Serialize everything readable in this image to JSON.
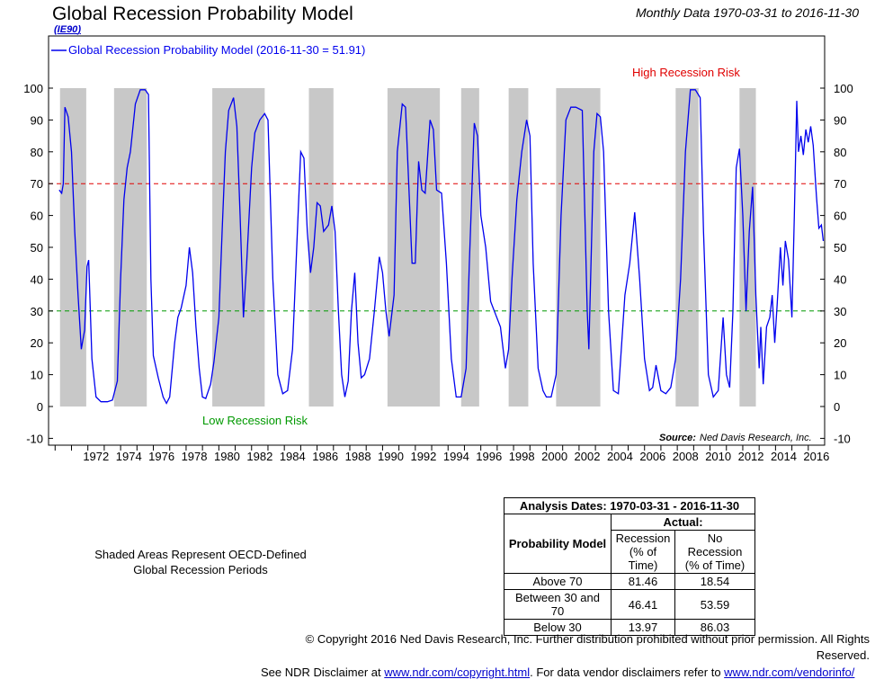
{
  "header": {
    "title": "Global Recession Probability Model",
    "code": "IE90",
    "date_range": "Monthly Data 1970-03-31 to 2016-11-30"
  },
  "chart_data": {
    "type": "line",
    "series": [
      {
        "name": "Global Recession Probability Model (2016-11-30 = 51.91)",
        "color": "#0000ee",
        "points": [
          [
            1970.25,
            68
          ],
          [
            1970.4,
            67
          ],
          [
            1970.5,
            70
          ],
          [
            1970.6,
            94
          ],
          [
            1970.8,
            91
          ],
          [
            1971.0,
            80
          ],
          [
            1971.2,
            55
          ],
          [
            1971.4,
            35
          ],
          [
            1971.6,
            18
          ],
          [
            1971.8,
            24
          ],
          [
            1971.95,
            44
          ],
          [
            1972.05,
            46
          ],
          [
            1972.25,
            15
          ],
          [
            1972.5,
            3
          ],
          [
            1972.8,
            1.5
          ],
          [
            1973.2,
            1.5
          ],
          [
            1973.5,
            2
          ],
          [
            1973.8,
            8
          ],
          [
            1974.0,
            40
          ],
          [
            1974.2,
            65
          ],
          [
            1974.4,
            75
          ],
          [
            1974.6,
            80
          ],
          [
            1974.9,
            95
          ],
          [
            1975.2,
            99.5
          ],
          [
            1975.5,
            99.5
          ],
          [
            1975.7,
            98
          ],
          [
            1975.85,
            40
          ],
          [
            1976.0,
            16
          ],
          [
            1976.3,
            9
          ],
          [
            1976.6,
            3
          ],
          [
            1976.8,
            1
          ],
          [
            1977.0,
            3
          ],
          [
            1977.3,
            20
          ],
          [
            1977.5,
            28
          ],
          [
            1977.7,
            31
          ],
          [
            1978.0,
            38
          ],
          [
            1978.2,
            50
          ],
          [
            1978.4,
            42
          ],
          [
            1978.6,
            25
          ],
          [
            1978.8,
            12
          ],
          [
            1979.0,
            3
          ],
          [
            1979.2,
            2.5
          ],
          [
            1979.5,
            7
          ],
          [
            1979.7,
            14
          ],
          [
            1980.0,
            28
          ],
          [
            1980.2,
            55
          ],
          [
            1980.4,
            80
          ],
          [
            1980.6,
            93
          ],
          [
            1980.9,
            97
          ],
          [
            1981.1,
            88
          ],
          [
            1981.3,
            60
          ],
          [
            1981.5,
            28
          ],
          [
            1981.7,
            45
          ],
          [
            1982.0,
            75
          ],
          [
            1982.2,
            86
          ],
          [
            1982.5,
            90
          ],
          [
            1982.8,
            92
          ],
          [
            1983.0,
            90
          ],
          [
            1983.3,
            40
          ],
          [
            1983.6,
            10
          ],
          [
            1983.9,
            4
          ],
          [
            1984.2,
            5
          ],
          [
            1984.5,
            18
          ],
          [
            1984.8,
            55
          ],
          [
            1985.0,
            80
          ],
          [
            1985.2,
            78
          ],
          [
            1985.4,
            55
          ],
          [
            1985.6,
            42
          ],
          [
            1985.8,
            50
          ],
          [
            1986.0,
            64
          ],
          [
            1986.2,
            63
          ],
          [
            1986.4,
            55
          ],
          [
            1986.7,
            57
          ],
          [
            1986.9,
            63
          ],
          [
            1987.1,
            55
          ],
          [
            1987.3,
            30
          ],
          [
            1987.5,
            10
          ],
          [
            1987.7,
            3
          ],
          [
            1987.9,
            8
          ],
          [
            1988.1,
            30
          ],
          [
            1988.3,
            42
          ],
          [
            1988.5,
            20
          ],
          [
            1988.7,
            9
          ],
          [
            1988.9,
            10
          ],
          [
            1989.2,
            15
          ],
          [
            1989.5,
            30
          ],
          [
            1989.8,
            47
          ],
          [
            1990.0,
            42
          ],
          [
            1990.2,
            30
          ],
          [
            1990.4,
            22
          ],
          [
            1990.7,
            35
          ],
          [
            1990.9,
            80
          ],
          [
            1991.2,
            95
          ],
          [
            1991.4,
            94
          ],
          [
            1991.6,
            70
          ],
          [
            1991.8,
            45
          ],
          [
            1992.0,
            45
          ],
          [
            1992.2,
            77
          ],
          [
            1992.4,
            68
          ],
          [
            1992.6,
            67
          ],
          [
            1992.9,
            90
          ],
          [
            1993.1,
            87
          ],
          [
            1993.3,
            68
          ],
          [
            1993.6,
            67
          ],
          [
            1993.9,
            45
          ],
          [
            1994.2,
            15
          ],
          [
            1994.5,
            3
          ],
          [
            1994.8,
            3
          ],
          [
            1995.1,
            12
          ],
          [
            1995.3,
            45
          ],
          [
            1995.6,
            89
          ],
          [
            1995.8,
            85
          ],
          [
            1996.0,
            60
          ],
          [
            1996.3,
            50
          ],
          [
            1996.6,
            33
          ],
          [
            1996.9,
            29
          ],
          [
            1997.2,
            25
          ],
          [
            1997.5,
            12
          ],
          [
            1997.7,
            18
          ],
          [
            1997.9,
            40
          ],
          [
            1998.2,
            65
          ],
          [
            1998.5,
            80
          ],
          [
            1998.8,
            90
          ],
          [
            1999.0,
            85
          ],
          [
            1999.2,
            45
          ],
          [
            1999.5,
            12
          ],
          [
            1999.8,
            5
          ],
          [
            2000.0,
            3
          ],
          [
            2000.3,
            3
          ],
          [
            2000.6,
            10
          ],
          [
            2000.9,
            60
          ],
          [
            2001.2,
            90
          ],
          [
            2001.5,
            94
          ],
          [
            2001.8,
            94
          ],
          [
            2002.2,
            93
          ],
          [
            2002.5,
            30
          ],
          [
            2002.6,
            18
          ],
          [
            2002.9,
            80
          ],
          [
            2003.1,
            92
          ],
          [
            2003.3,
            91
          ],
          [
            2003.5,
            80
          ],
          [
            2003.8,
            30
          ],
          [
            2004.1,
            5
          ],
          [
            2004.4,
            4
          ],
          [
            2004.8,
            35
          ],
          [
            2005.1,
            45
          ],
          [
            2005.4,
            61
          ],
          [
            2005.7,
            40
          ],
          [
            2006.0,
            15
          ],
          [
            2006.3,
            5
          ],
          [
            2006.5,
            6
          ],
          [
            2006.7,
            13
          ],
          [
            2007.0,
            5
          ],
          [
            2007.3,
            4
          ],
          [
            2007.6,
            6
          ],
          [
            2007.9,
            15
          ],
          [
            2008.2,
            40
          ],
          [
            2008.5,
            80
          ],
          [
            2008.8,
            99.5
          ],
          [
            2009.1,
            99.5
          ],
          [
            2009.4,
            97
          ],
          [
            2009.6,
            55
          ],
          [
            2009.9,
            10
          ],
          [
            2010.2,
            3
          ],
          [
            2010.5,
            5
          ],
          [
            2010.8,
            28
          ],
          [
            2011.0,
            10
          ],
          [
            2011.2,
            6
          ],
          [
            2011.4,
            30
          ],
          [
            2011.6,
            75
          ],
          [
            2011.8,
            81
          ],
          [
            2012.0,
            60
          ],
          [
            2012.2,
            30
          ],
          [
            2012.4,
            55
          ],
          [
            2012.6,
            69
          ],
          [
            2012.8,
            35
          ],
          [
            2013.0,
            12
          ],
          [
            2013.1,
            25
          ],
          [
            2013.25,
            7
          ],
          [
            2013.45,
            25
          ],
          [
            2013.65,
            28
          ],
          [
            2013.8,
            35
          ],
          [
            2013.95,
            20
          ],
          [
            2014.1,
            32
          ],
          [
            2014.3,
            50
          ],
          [
            2014.45,
            38
          ],
          [
            2014.6,
            52
          ],
          [
            2014.8,
            46
          ],
          [
            2015.0,
            28
          ],
          [
            2015.15,
            60
          ],
          [
            2015.3,
            96
          ],
          [
            2015.4,
            80
          ],
          [
            2015.55,
            85
          ],
          [
            2015.7,
            79
          ],
          [
            2015.85,
            87
          ],
          [
            2016.0,
            83
          ],
          [
            2016.15,
            88
          ],
          [
            2016.3,
            82
          ],
          [
            2016.5,
            66
          ],
          [
            2016.65,
            56
          ],
          [
            2016.8,
            57
          ],
          [
            2016.92,
            52
          ]
        ]
      }
    ],
    "recession_periods": [
      [
        1970.3,
        1971.9
      ],
      [
        1973.6,
        1975.6
      ],
      [
        1979.6,
        1982.8
      ],
      [
        1985.5,
        1987.0
      ],
      [
        1990.3,
        1993.5
      ],
      [
        1994.8,
        1995.9
      ],
      [
        1997.7,
        1998.9
      ],
      [
        2000.6,
        2003.3
      ],
      [
        2007.9,
        2009.3
      ],
      [
        2011.8,
        2012.8
      ]
    ],
    "reference_lines": [
      {
        "value": 70,
        "color": "#e00000",
        "label": "High Recession Risk"
      },
      {
        "value": 30,
        "color": "#009900",
        "label": "Low Recession Risk"
      }
    ],
    "xlim": [
      1969.6,
      2017.0
    ],
    "ylim": [
      -10,
      110
    ],
    "x_ticks": [
      "1972",
      "1974",
      "1976",
      "1978",
      "1980",
      "1982",
      "1984",
      "1986",
      "1988",
      "1990",
      "1992",
      "1994",
      "1996",
      "1998",
      "2000",
      "2002",
      "2004",
      "2006",
      "2008",
      "2010",
      "2012",
      "2014",
      "2016"
    ],
    "y_ticks": [
      "-10",
      "0",
      "10",
      "20",
      "30",
      "40",
      "50",
      "60",
      "70",
      "80",
      "90",
      "100"
    ],
    "source_label": "Source:",
    "source_text": "Ned Davis Research, Inc."
  },
  "analysis_table": {
    "title": "Analysis Dates: 1970-03-31 - 2016-11-30",
    "group_header": "Actual:",
    "row_header": "Probability Model",
    "col1": "Recession (% of Time)",
    "col2": "No Recession (% of Time)",
    "rows": [
      {
        "label": "Above 70",
        "recession": "81.46",
        "no_recession": "18.54"
      },
      {
        "label": "Between 30 and 70",
        "recession": "46.41",
        "no_recession": "53.59"
      },
      {
        "label": "Below 30",
        "recession": "13.97",
        "no_recession": "86.03"
      }
    ]
  },
  "notes": {
    "shaded": "Shaded Areas Represent OECD-Defined Global Recession Periods",
    "copyright": "© Copyright 2016 Ned Davis Research, Inc. Further distribution prohibited without prior permission. All Rights Reserved.",
    "disclaimer_pre": "See NDR Disclaimer at",
    "disclaimer_link1": "www.ndr.com/copyright.html",
    "disclaimer_mid": ". For data vendor disclaimers refer to",
    "disclaimer_link2": "www.ndr.com/vendorinfo/"
  }
}
